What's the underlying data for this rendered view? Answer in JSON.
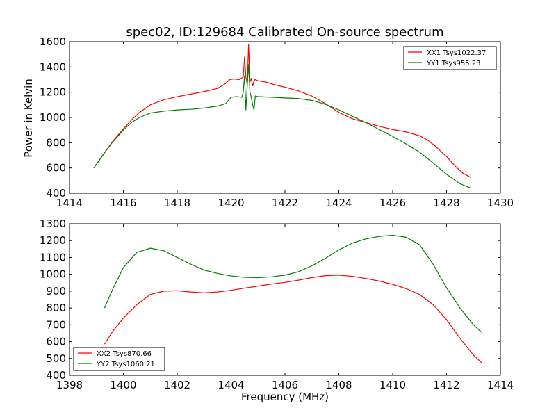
{
  "chart_data": [
    {
      "type": "line",
      "title": "spec02, ID:129684 Calibrated On-source spectrum",
      "xlabel": "",
      "ylabel": "Power in Kelvin",
      "xlim": [
        1414,
        1430
      ],
      "ylim": [
        400,
        1600
      ],
      "xticks": [
        "1414",
        "1416",
        "1418",
        "1420",
        "1422",
        "1424",
        "1426",
        "1428",
        "1430"
      ],
      "yticks": [
        "400",
        "600",
        "800",
        "1000",
        "1200",
        "1400",
        "1600"
      ],
      "legend_position": "top-right",
      "series": [
        {
          "name": "XX1 Tsys1022.37",
          "color": "#ff0000",
          "x": [
            1414.9,
            1415.3,
            1415.6,
            1416.0,
            1416.3,
            1416.6,
            1417.0,
            1417.5,
            1418.0,
            1418.5,
            1419.0,
            1419.5,
            1419.8,
            1419.95,
            1420.1,
            1420.3,
            1420.45,
            1420.5,
            1420.55,
            1420.6,
            1420.65,
            1420.7,
            1420.75,
            1420.8,
            1420.85,
            1420.9,
            1421.0,
            1421.3,
            1421.6,
            1422.0,
            1422.5,
            1423.0,
            1423.5,
            1424.0,
            1424.5,
            1425.0,
            1425.5,
            1426.0,
            1426.5,
            1427.0,
            1427.3,
            1427.6,
            1428.0,
            1428.3,
            1428.6,
            1428.9
          ],
          "y": [
            600,
            720,
            810,
            910,
            980,
            1040,
            1100,
            1140,
            1165,
            1185,
            1205,
            1230,
            1270,
            1300,
            1305,
            1300,
            1320,
            1480,
            1320,
            1260,
            1580,
            1280,
            1310,
            1250,
            1290,
            1300,
            1290,
            1280,
            1260,
            1240,
            1210,
            1170,
            1110,
            1040,
            990,
            960,
            930,
            905,
            885,
            855,
            820,
            770,
            690,
            620,
            560,
            525
          ]
        },
        {
          "name": "YY1 Tsys955.23",
          "color": "#008000",
          "x": [
            1414.9,
            1415.3,
            1415.6,
            1416.0,
            1416.3,
            1416.6,
            1417.0,
            1417.5,
            1418.0,
            1418.5,
            1419.0,
            1419.5,
            1419.8,
            1420.0,
            1420.2,
            1420.4,
            1420.45,
            1420.5,
            1420.55,
            1420.6,
            1420.65,
            1420.7,
            1420.75,
            1420.8,
            1420.85,
            1420.9,
            1421.0,
            1421.5,
            1422.0,
            1422.5,
            1423.0,
            1423.5,
            1424.0,
            1424.5,
            1425.0,
            1425.5,
            1426.0,
            1426.5,
            1427.0,
            1427.5,
            1428.0,
            1428.5,
            1428.9
          ],
          "y": [
            600,
            720,
            805,
            900,
            960,
            1000,
            1035,
            1050,
            1060,
            1065,
            1075,
            1090,
            1110,
            1160,
            1165,
            1160,
            1200,
            1330,
            1060,
            1250,
            1420,
            1200,
            1160,
            1100,
            1060,
            1170,
            1165,
            1160,
            1155,
            1150,
            1135,
            1105,
            1060,
            1010,
            960,
            905,
            850,
            790,
            725,
            640,
            550,
            475,
            440
          ]
        }
      ]
    },
    {
      "type": "line",
      "title": "",
      "xlabel": "Frequency (MHz)",
      "ylabel": "",
      "xlim": [
        1398,
        1414
      ],
      "ylim": [
        400,
        1300
      ],
      "xticks": [
        "1398",
        "1400",
        "1402",
        "1404",
        "1406",
        "1408",
        "1410",
        "1412",
        "1414"
      ],
      "yticks": [
        "400",
        "500",
        "600",
        "700",
        "800",
        "900",
        "1000",
        "1100",
        "1200",
        "1300"
      ],
      "legend_position": "bottom-left",
      "series": [
        {
          "name": "XX2 Tsys870.66",
          "color": "#ff0000",
          "x": [
            1399.3,
            1399.6,
            1400.0,
            1400.5,
            1401.0,
            1401.5,
            1402.0,
            1402.5,
            1403.0,
            1403.5,
            1404.0,
            1404.5,
            1405.0,
            1405.5,
            1406.0,
            1406.5,
            1407.0,
            1407.5,
            1408.0,
            1408.5,
            1409.0,
            1409.5,
            1410.0,
            1410.5,
            1411.0,
            1411.5,
            1412.0,
            1412.5,
            1413.0,
            1413.3
          ],
          "y": [
            585,
            660,
            740,
            820,
            880,
            900,
            902,
            895,
            890,
            895,
            905,
            918,
            930,
            942,
            952,
            965,
            980,
            992,
            995,
            988,
            975,
            960,
            940,
            915,
            880,
            820,
            730,
            620,
            520,
            475
          ]
        },
        {
          "name": "YY2 Tsys1060.21",
          "color": "#008000",
          "x": [
            1399.3,
            1399.6,
            1400.0,
            1400.5,
            1401.0,
            1401.5,
            1402.0,
            1402.5,
            1403.0,
            1403.5,
            1404.0,
            1404.5,
            1405.0,
            1405.5,
            1406.0,
            1406.5,
            1407.0,
            1407.5,
            1408.0,
            1408.5,
            1409.0,
            1409.5,
            1410.0,
            1410.5,
            1411.0,
            1411.5,
            1412.0,
            1412.5,
            1413.0,
            1413.3
          ],
          "y": [
            800,
            910,
            1040,
            1130,
            1155,
            1140,
            1100,
            1060,
            1025,
            1005,
            990,
            982,
            980,
            985,
            995,
            1015,
            1050,
            1095,
            1145,
            1185,
            1210,
            1225,
            1232,
            1220,
            1175,
            1060,
            920,
            800,
            700,
            655
          ]
        }
      ]
    }
  ]
}
